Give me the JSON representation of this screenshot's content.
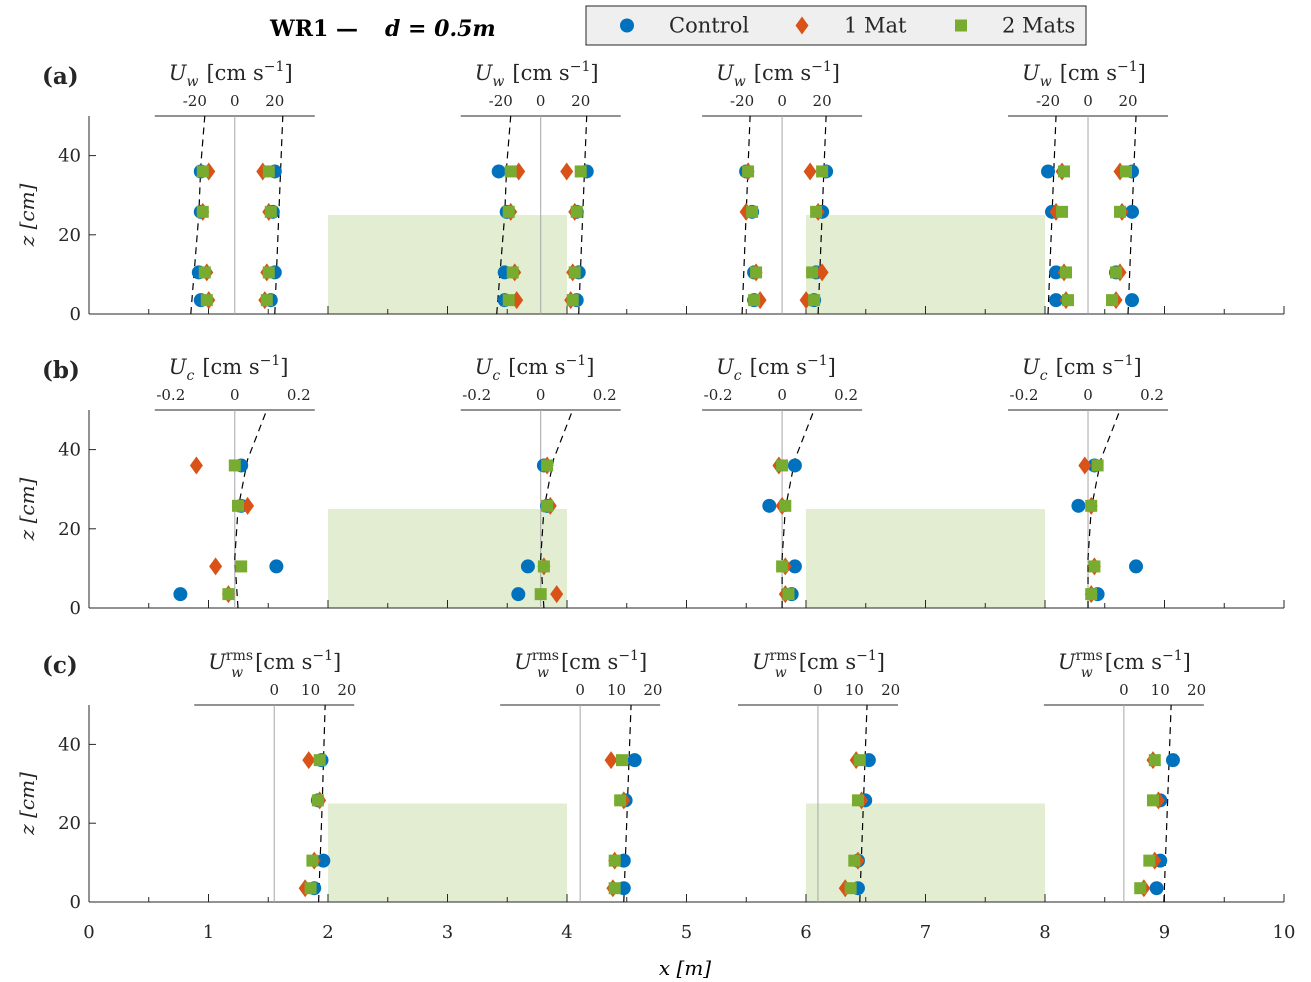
{
  "figure": {
    "title_main": "WR1 —",
    "title_var": "d = 0.5m",
    "xlabel": "x [m]",
    "ylabel": "z [cm]"
  },
  "legend": {
    "entries": [
      {
        "label": "Control",
        "marker": "circle",
        "color": "#0072BD"
      },
      {
        "label": "1 Mat",
        "marker": "diamond",
        "color": "#D95319"
      },
      {
        "label": "2 Mats",
        "marker": "square",
        "color": "#77AC30"
      }
    ]
  },
  "colors": {
    "control": "#0072BD",
    "one_mat": "#D95319",
    "two_mats": "#77AC30",
    "mat_fill": "#E3EDD2",
    "axis": "#262626",
    "zero_line": "#A6A6A6"
  },
  "chart_data": [
    {
      "type": "scatter",
      "panel": "(a)",
      "profile_quantity": "U_w",
      "profile_label_var": "U",
      "profile_label_sub": "w",
      "profile_label_sup": "",
      "profile_label_unit": "[cm s",
      "profile_label_exp": "−1",
      "profile_ticks": [
        "-20",
        "0",
        "20"
      ],
      "profile_tick_values": [
        -20,
        0,
        20
      ],
      "profile_axis_range": [
        -40,
        40
      ],
      "xlim": [
        0,
        10
      ],
      "ylim": [
        0,
        50
      ],
      "yticks": [
        0,
        20,
        40
      ],
      "mat_regions": [
        [
          2,
          4
        ],
        [
          6,
          8
        ]
      ],
      "profiles": [
        {
          "x0": 1.22,
          "z": [
            3.5,
            10.5,
            25.8,
            36
          ],
          "control": {
            "neg": [
              -17,
              -18,
              -17,
              -17
            ],
            "pos": [
              18,
              20,
              19,
              20
            ]
          },
          "one_mat": {
            "neg": [
              -13,
              -14,
              -16,
              -13
            ],
            "pos": [
              15,
              16,
              17,
              14
            ]
          },
          "two_mats": {
            "neg": [
              -14,
              -15,
              -16,
              -16
            ],
            "pos": [
              16,
              17,
              18,
              17
            ]
          },
          "fit": {
            "neg": [
              -22,
              -20,
              -18,
              -17,
              -15
            ],
            "pos": [
              20,
              21,
              22,
              23,
              24
            ]
          }
        },
        {
          "x0": 3.78,
          "z": [
            3.5,
            10.5,
            25.8,
            36
          ],
          "control": {
            "neg": [
              -18,
              -18,
              -17,
              -21
            ],
            "pos": [
              18,
              19,
              18,
              23
            ]
          },
          "one_mat": {
            "neg": [
              -12,
              -13,
              -15,
              -11
            ],
            "pos": [
              15,
              16,
              17,
              13
            ]
          },
          "two_mats": {
            "neg": [
              -16,
              -14,
              -16,
              -15
            ],
            "pos": [
              16,
              17,
              18,
              20
            ]
          },
          "fit": {
            "neg": [
              -22,
              -20,
              -18,
              -17,
              -15
            ],
            "pos": [
              19,
              20,
              21,
              22,
              23
            ]
          }
        },
        {
          "x0": 5.8,
          "z": [
            3.5,
            10.5,
            25.8,
            36
          ],
          "control": {
            "neg": [
              -14,
              -14,
              -15,
              -18
            ],
            "pos": [
              16,
              17,
              20,
              22
            ]
          },
          "one_mat": {
            "neg": [
              -11,
              -13,
              -18,
              -17
            ],
            "pos": [
              12,
              20,
              18,
              14
            ]
          },
          "two_mats": {
            "neg": [
              -14,
              -13,
              -15,
              -17
            ],
            "pos": [
              16,
              15,
              17,
              20
            ]
          },
          "fit": {
            "neg": [
              -20,
              -19,
              -18,
              -17,
              -16
            ],
            "pos": [
              18,
              19,
              20,
              21,
              22
            ]
          }
        },
        {
          "x0": 8.36,
          "z": [
            3.5,
            10.5,
            25.8,
            36
          ],
          "control": {
            "neg": [
              -16,
              -16,
              -18,
              -20
            ],
            "pos": [
              22,
              14,
              22,
              22
            ]
          },
          "one_mat": {
            "neg": [
              -11,
              -12,
              -16,
              -13
            ],
            "pos": [
              14,
              16,
              17,
              16
            ]
          },
          "two_mats": {
            "neg": [
              -10,
              -11,
              -13,
              -12
            ],
            "pos": [
              12,
              14,
              16,
              19
            ]
          },
          "fit": {
            "neg": [
              -20,
              -19,
              -18,
              -17,
              -16
            ],
            "pos": [
              20,
              21,
              22,
              23,
              24
            ]
          }
        }
      ]
    },
    {
      "type": "scatter",
      "panel": "(b)",
      "profile_quantity": "U_c",
      "profile_label_var": "U",
      "profile_label_sub": "c",
      "profile_label_sup": "",
      "profile_label_unit": "[cm s",
      "profile_label_exp": "−1",
      "profile_ticks": [
        "-0.2",
        "0",
        "0.2"
      ],
      "profile_tick_values": [
        -0.2,
        0,
        0.2
      ],
      "profile_axis_range": [
        -0.25,
        0.25
      ],
      "xlim": [
        0,
        10
      ],
      "ylim": [
        0,
        50
      ],
      "yticks": [
        0,
        20,
        40
      ],
      "mat_regions": [
        [
          2,
          4
        ],
        [
          6,
          8
        ]
      ],
      "profiles": [
        {
          "x0": 1.22,
          "z": [
            3.5,
            10.5,
            25.8,
            36
          ],
          "control": [
            -0.17,
            0.13,
            0.02,
            0.02
          ],
          "one_mat": [
            -0.02,
            -0.06,
            0.04,
            -0.12
          ],
          "two_mats": [
            -0.02,
            0.02,
            0.01,
            0.0
          ],
          "fit": [
            0.01,
            0.0,
            0.01,
            0.04,
            0.1
          ]
        },
        {
          "x0": 3.78,
          "z": [
            3.5,
            10.5,
            25.8,
            36
          ],
          "control": [
            -0.07,
            -0.04,
            0.02,
            0.01
          ],
          "one_mat": [
            0.05,
            0.01,
            0.03,
            0.02
          ],
          "two_mats": [
            0.0,
            0.01,
            0.02,
            0.02
          ],
          "fit": [
            0.01,
            0.0,
            0.01,
            0.04,
            0.1
          ]
        },
        {
          "x0": 5.8,
          "z": [
            3.5,
            10.5,
            25.8,
            36
          ],
          "control": [
            0.03,
            0.04,
            -0.04,
            0.04
          ],
          "one_mat": [
            0.01,
            0.01,
            0.0,
            -0.01
          ],
          "two_mats": [
            0.02,
            0.0,
            0.01,
            0.0
          ],
          "fit": [
            0.0,
            0.0,
            0.01,
            0.04,
            0.1
          ]
        },
        {
          "x0": 8.36,
          "z": [
            3.5,
            10.5,
            25.8,
            36
          ],
          "control": [
            0.03,
            0.15,
            -0.03,
            0.02
          ],
          "one_mat": [
            0.01,
            0.02,
            0.01,
            -0.01
          ],
          "two_mats": [
            0.01,
            0.02,
            0.01,
            0.03
          ],
          "fit": [
            0.0,
            0.0,
            0.01,
            0.04,
            0.1
          ]
        }
      ]
    },
    {
      "type": "scatter",
      "panel": "(c)",
      "profile_quantity": "U_w^rms",
      "profile_label_var": "U",
      "profile_label_sub": "w",
      "profile_label_sup": "rms",
      "profile_label_unit": "[cm s",
      "profile_label_exp": "−1",
      "profile_ticks": [
        "0",
        "10",
        "20"
      ],
      "profile_tick_values": [
        0,
        10,
        20
      ],
      "profile_axis_range": [
        -22,
        22
      ],
      "xlim": [
        0,
        10
      ],
      "ylim": [
        0,
        50
      ],
      "yticks": [
        0,
        20,
        40
      ],
      "mat_regions": [
        [
          2,
          4
        ],
        [
          6,
          8
        ]
      ],
      "profiles": [
        {
          "x0": 1.55,
          "z": [
            3.5,
            10.5,
            25.8,
            36
          ],
          "control": [
            11,
            13.5,
            12,
            13
          ],
          "one_mat": [
            8.5,
            11,
            12.5,
            9.5
          ],
          "two_mats": [
            10,
            10.5,
            12,
            12.5
          ],
          "fit": [
            12.2,
            12.7,
            13.2,
            13.6,
            14.0
          ]
        },
        {
          "x0": 4.11,
          "z": [
            3.5,
            10.5,
            25.8,
            36
          ],
          "control": [
            12,
            12,
            12.5,
            15
          ],
          "one_mat": [
            9,
            9.5,
            12,
            8.5
          ],
          "two_mats": [
            9.5,
            9.5,
            11,
            11.5
          ],
          "fit": [
            12.0,
            12.5,
            13.0,
            13.5,
            14.0
          ]
        },
        {
          "x0": 6.1,
          "z": [
            3.5,
            10.5,
            25.8,
            36
          ],
          "control": [
            11,
            11,
            13,
            14
          ],
          "one_mat": [
            7.5,
            11,
            12,
            10.5
          ],
          "two_mats": [
            9,
            10,
            11,
            11.5
          ],
          "fit": [
            11.5,
            12.0,
            12.5,
            13.0,
            13.5
          ]
        },
        {
          "x0": 8.66,
          "z": [
            3.5,
            10.5,
            25.8,
            36
          ],
          "control": [
            9,
            10,
            10,
            13.5
          ],
          "one_mat": [
            5.5,
            8.5,
            9.5,
            8
          ],
          "two_mats": [
            4.5,
            7,
            8,
            8.5
          ],
          "fit": [
            11.0,
            11.5,
            12.0,
            12.5,
            13.0
          ]
        }
      ]
    }
  ],
  "shared_x_axis": {
    "ticks": [
      "0",
      "1",
      "2",
      "3",
      "4",
      "5",
      "6",
      "7",
      "8",
      "9",
      "10"
    ]
  },
  "panel_letters": [
    "(a)",
    "(b)",
    "(c)"
  ]
}
